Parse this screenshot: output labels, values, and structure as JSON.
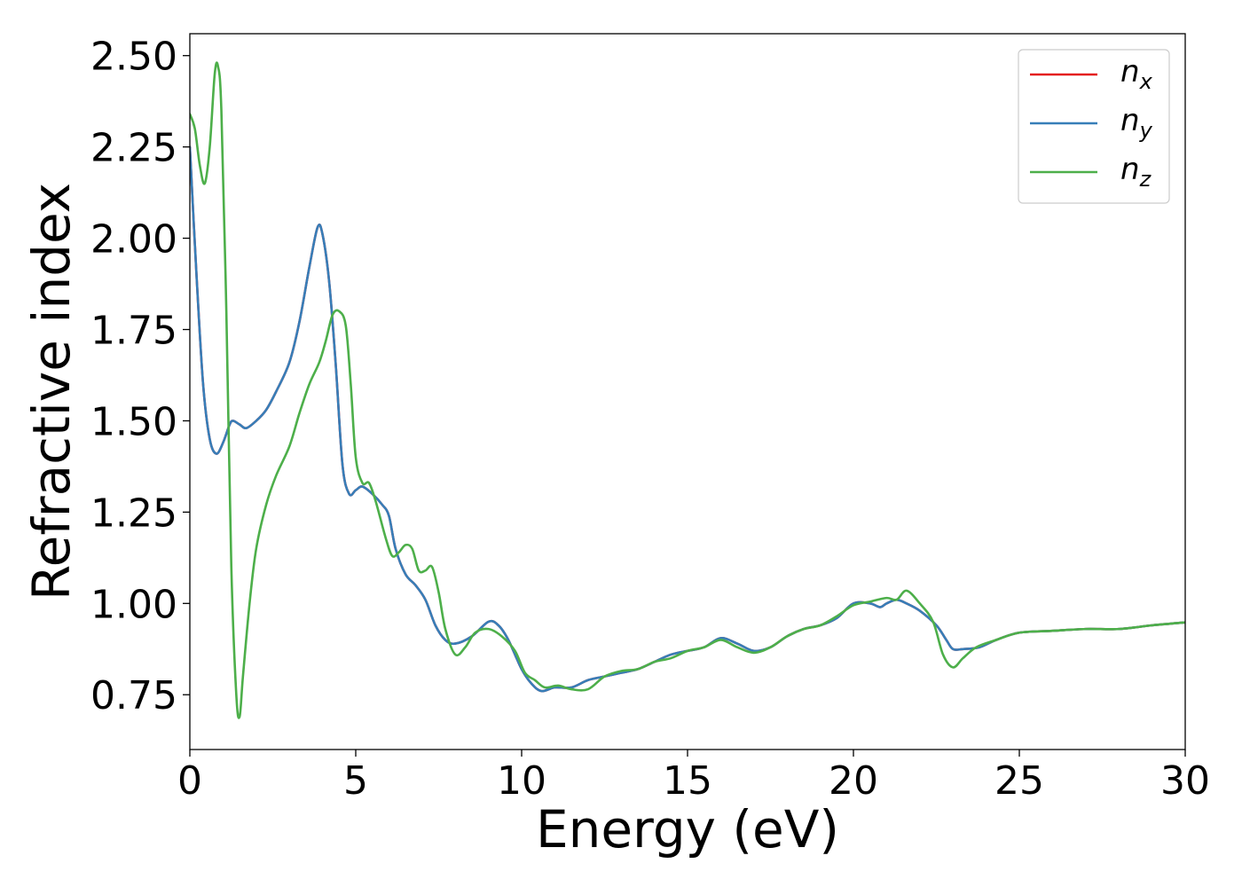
{
  "chart_data": {
    "type": "line",
    "title": "",
    "xlabel": "Energy (eV)",
    "ylabel": "Refractive index",
    "xlim": [
      0,
      30
    ],
    "ylim": [
      0.6,
      2.56
    ],
    "xticks": [
      0,
      5,
      10,
      15,
      20,
      25,
      30
    ],
    "yticks": [
      0.75,
      1.0,
      1.25,
      1.5,
      1.75,
      2.0,
      2.25,
      2.5
    ],
    "xtick_labels": [
      "0",
      "5",
      "10",
      "15",
      "20",
      "25",
      "30"
    ],
    "ytick_labels": [
      "0.75",
      "1.00",
      "1.25",
      "1.50",
      "1.75",
      "2.00",
      "2.25",
      "2.50"
    ],
    "grid": false,
    "legend_position": "top-right",
    "series": [
      {
        "name": "n",
        "subscript": "x",
        "color": "#e41a1c",
        "points": [
          [
            0,
            2.25
          ],
          [
            0.2,
            1.9
          ],
          [
            0.4,
            1.6
          ],
          [
            0.6,
            1.45
          ],
          [
            0.8,
            1.41
          ],
          [
            1.0,
            1.44
          ],
          [
            1.2,
            1.49
          ],
          [
            1.3,
            1.5
          ],
          [
            1.5,
            1.49
          ],
          [
            1.7,
            1.48
          ],
          [
            2.0,
            1.5
          ],
          [
            2.3,
            1.53
          ],
          [
            2.6,
            1.58
          ],
          [
            3.0,
            1.66
          ],
          [
            3.3,
            1.77
          ],
          [
            3.6,
            1.92
          ],
          [
            3.85,
            2.03
          ],
          [
            4.0,
            2.01
          ],
          [
            4.2,
            1.88
          ],
          [
            4.4,
            1.65
          ],
          [
            4.6,
            1.38
          ],
          [
            4.8,
            1.3
          ],
          [
            5.0,
            1.31
          ],
          [
            5.2,
            1.32
          ],
          [
            5.5,
            1.3
          ],
          [
            5.8,
            1.27
          ],
          [
            6.0,
            1.24
          ],
          [
            6.2,
            1.15
          ],
          [
            6.5,
            1.08
          ],
          [
            6.8,
            1.05
          ],
          [
            7.1,
            1.01
          ],
          [
            7.4,
            0.94
          ],
          [
            7.7,
            0.9
          ],
          [
            8.0,
            0.89
          ],
          [
            8.5,
            0.91
          ],
          [
            9.0,
            0.95
          ],
          [
            9.3,
            0.94
          ],
          [
            9.6,
            0.9
          ],
          [
            10.0,
            0.82
          ],
          [
            10.3,
            0.78
          ],
          [
            10.6,
            0.76
          ],
          [
            11.0,
            0.77
          ],
          [
            11.5,
            0.77
          ],
          [
            12.0,
            0.79
          ],
          [
            12.5,
            0.8
          ],
          [
            13.0,
            0.81
          ],
          [
            13.5,
            0.82
          ],
          [
            14.0,
            0.84
          ],
          [
            14.5,
            0.86
          ],
          [
            15.0,
            0.87
          ],
          [
            15.5,
            0.88
          ],
          [
            16.0,
            0.905
          ],
          [
            16.5,
            0.89
          ],
          [
            17.0,
            0.87
          ],
          [
            17.5,
            0.88
          ],
          [
            18.0,
            0.91
          ],
          [
            18.5,
            0.93
          ],
          [
            19.0,
            0.94
          ],
          [
            19.5,
            0.96
          ],
          [
            20.0,
            1.0
          ],
          [
            20.5,
            1.0
          ],
          [
            20.8,
            0.99
          ],
          [
            21.0,
            1.0
          ],
          [
            21.3,
            1.01
          ],
          [
            21.6,
            1.0
          ],
          [
            22.0,
            0.98
          ],
          [
            22.5,
            0.94
          ],
          [
            22.8,
            0.9
          ],
          [
            23.0,
            0.875
          ],
          [
            23.3,
            0.875
          ],
          [
            23.8,
            0.88
          ],
          [
            24.3,
            0.9
          ],
          [
            25.0,
            0.92
          ],
          [
            26.0,
            0.925
          ],
          [
            27.0,
            0.93
          ],
          [
            28.0,
            0.93
          ],
          [
            29.0,
            0.94
          ],
          [
            30.0,
            0.948
          ]
        ]
      },
      {
        "name": "n",
        "subscript": "y",
        "color": "#377eb8",
        "points": [
          [
            0,
            2.25
          ],
          [
            0.2,
            1.9
          ],
          [
            0.4,
            1.6
          ],
          [
            0.6,
            1.45
          ],
          [
            0.8,
            1.41
          ],
          [
            1.0,
            1.44
          ],
          [
            1.2,
            1.49
          ],
          [
            1.3,
            1.5
          ],
          [
            1.5,
            1.49
          ],
          [
            1.7,
            1.48
          ],
          [
            2.0,
            1.5
          ],
          [
            2.3,
            1.53
          ],
          [
            2.6,
            1.58
          ],
          [
            3.0,
            1.66
          ],
          [
            3.3,
            1.77
          ],
          [
            3.6,
            1.92
          ],
          [
            3.85,
            2.03
          ],
          [
            4.0,
            2.01
          ],
          [
            4.2,
            1.88
          ],
          [
            4.4,
            1.65
          ],
          [
            4.6,
            1.38
          ],
          [
            4.8,
            1.3
          ],
          [
            5.0,
            1.31
          ],
          [
            5.2,
            1.32
          ],
          [
            5.5,
            1.3
          ],
          [
            5.8,
            1.27
          ],
          [
            6.0,
            1.24
          ],
          [
            6.2,
            1.15
          ],
          [
            6.5,
            1.08
          ],
          [
            6.8,
            1.05
          ],
          [
            7.1,
            1.01
          ],
          [
            7.4,
            0.94
          ],
          [
            7.7,
            0.9
          ],
          [
            8.0,
            0.89
          ],
          [
            8.5,
            0.91
          ],
          [
            9.0,
            0.95
          ],
          [
            9.3,
            0.94
          ],
          [
            9.6,
            0.9
          ],
          [
            10.0,
            0.82
          ],
          [
            10.3,
            0.78
          ],
          [
            10.6,
            0.76
          ],
          [
            11.0,
            0.77
          ],
          [
            11.5,
            0.77
          ],
          [
            12.0,
            0.79
          ],
          [
            12.5,
            0.8
          ],
          [
            13.0,
            0.81
          ],
          [
            13.5,
            0.82
          ],
          [
            14.0,
            0.84
          ],
          [
            14.5,
            0.86
          ],
          [
            15.0,
            0.87
          ],
          [
            15.5,
            0.88
          ],
          [
            16.0,
            0.905
          ],
          [
            16.5,
            0.89
          ],
          [
            17.0,
            0.87
          ],
          [
            17.5,
            0.88
          ],
          [
            18.0,
            0.91
          ],
          [
            18.5,
            0.93
          ],
          [
            19.0,
            0.94
          ],
          [
            19.5,
            0.96
          ],
          [
            20.0,
            1.0
          ],
          [
            20.5,
            1.0
          ],
          [
            20.8,
            0.99
          ],
          [
            21.0,
            1.0
          ],
          [
            21.3,
            1.01
          ],
          [
            21.6,
            1.0
          ],
          [
            22.0,
            0.98
          ],
          [
            22.5,
            0.94
          ],
          [
            22.8,
            0.9
          ],
          [
            23.0,
            0.875
          ],
          [
            23.3,
            0.875
          ],
          [
            23.8,
            0.88
          ],
          [
            24.3,
            0.9
          ],
          [
            25.0,
            0.92
          ],
          [
            26.0,
            0.925
          ],
          [
            27.0,
            0.93
          ],
          [
            28.0,
            0.93
          ],
          [
            29.0,
            0.94
          ],
          [
            30.0,
            0.948
          ]
        ]
      },
      {
        "name": "n",
        "subscript": "z",
        "color": "#4daf4a",
        "points": [
          [
            0,
            2.34
          ],
          [
            0.15,
            2.3
          ],
          [
            0.3,
            2.2
          ],
          [
            0.45,
            2.15
          ],
          [
            0.6,
            2.25
          ],
          [
            0.75,
            2.45
          ],
          [
            0.85,
            2.47
          ],
          [
            0.95,
            2.35
          ],
          [
            1.1,
            1.8
          ],
          [
            1.25,
            1.1
          ],
          [
            1.4,
            0.75
          ],
          [
            1.5,
            0.69
          ],
          [
            1.6,
            0.8
          ],
          [
            1.8,
            1.0
          ],
          [
            2.0,
            1.15
          ],
          [
            2.3,
            1.27
          ],
          [
            2.6,
            1.35
          ],
          [
            3.0,
            1.43
          ],
          [
            3.3,
            1.52
          ],
          [
            3.6,
            1.6
          ],
          [
            3.9,
            1.66
          ],
          [
            4.1,
            1.72
          ],
          [
            4.3,
            1.79
          ],
          [
            4.5,
            1.8
          ],
          [
            4.7,
            1.76
          ],
          [
            4.85,
            1.6
          ],
          [
            5.0,
            1.4
          ],
          [
            5.2,
            1.33
          ],
          [
            5.4,
            1.33
          ],
          [
            5.6,
            1.28
          ],
          [
            5.9,
            1.18
          ],
          [
            6.1,
            1.13
          ],
          [
            6.3,
            1.14
          ],
          [
            6.5,
            1.16
          ],
          [
            6.7,
            1.15
          ],
          [
            6.9,
            1.09
          ],
          [
            7.1,
            1.09
          ],
          [
            7.3,
            1.1
          ],
          [
            7.5,
            1.03
          ],
          [
            7.7,
            0.93
          ],
          [
            8.0,
            0.86
          ],
          [
            8.3,
            0.88
          ],
          [
            8.6,
            0.92
          ],
          [
            9.0,
            0.93
          ],
          [
            9.4,
            0.91
          ],
          [
            9.8,
            0.87
          ],
          [
            10.1,
            0.81
          ],
          [
            10.4,
            0.79
          ],
          [
            10.7,
            0.77
          ],
          [
            11.1,
            0.775
          ],
          [
            11.5,
            0.765
          ],
          [
            12.0,
            0.765
          ],
          [
            12.5,
            0.8
          ],
          [
            13.0,
            0.815
          ],
          [
            13.5,
            0.82
          ],
          [
            14.0,
            0.84
          ],
          [
            14.5,
            0.85
          ],
          [
            15.0,
            0.87
          ],
          [
            15.5,
            0.88
          ],
          [
            16.0,
            0.9
          ],
          [
            16.5,
            0.88
          ],
          [
            17.0,
            0.865
          ],
          [
            17.5,
            0.88
          ],
          [
            18.0,
            0.91
          ],
          [
            18.5,
            0.93
          ],
          [
            19.0,
            0.94
          ],
          [
            19.5,
            0.965
          ],
          [
            20.0,
            0.995
          ],
          [
            20.5,
            1.005
          ],
          [
            21.0,
            1.015
          ],
          [
            21.3,
            1.01
          ],
          [
            21.6,
            1.035
          ],
          [
            22.0,
            1.0
          ],
          [
            22.4,
            0.95
          ],
          [
            22.7,
            0.86
          ],
          [
            23.0,
            0.825
          ],
          [
            23.3,
            0.85
          ],
          [
            23.7,
            0.88
          ],
          [
            24.3,
            0.9
          ],
          [
            25.0,
            0.92
          ],
          [
            26.0,
            0.925
          ],
          [
            27.0,
            0.93
          ],
          [
            28.0,
            0.93
          ],
          [
            29.0,
            0.94
          ],
          [
            30.0,
            0.948
          ]
        ]
      }
    ]
  }
}
